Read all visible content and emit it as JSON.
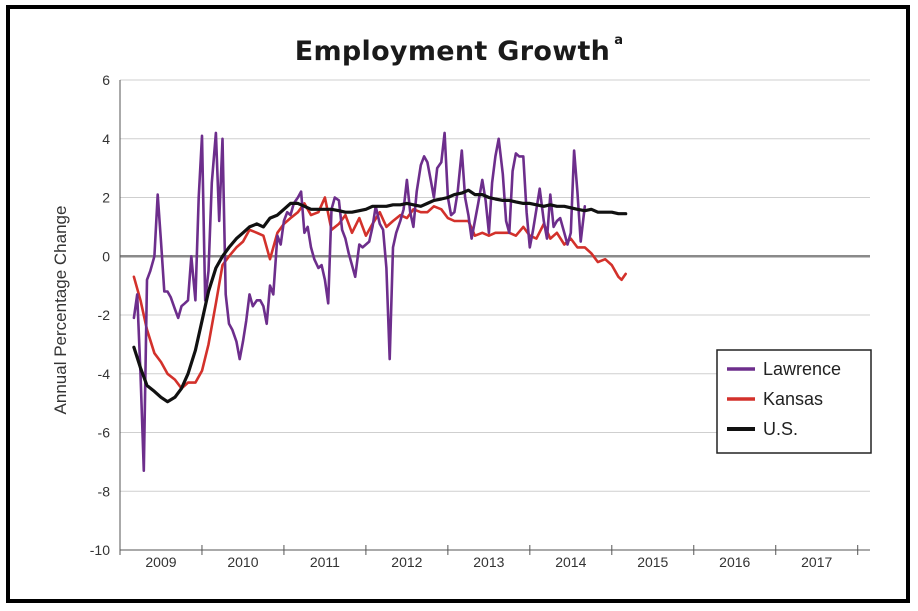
{
  "chart_data": {
    "type": "line",
    "title": "Employment Growth",
    "title_superscript": "a",
    "ylabel": "Annual Percentage Change",
    "ylim": [
      -10,
      6
    ],
    "y_ticks": [
      6,
      4,
      2,
      0,
      -2,
      -4,
      -6,
      -8,
      -10
    ],
    "x_ticks": [
      "2009",
      "2010",
      "2011",
      "2012",
      "2013",
      "2014",
      "2015",
      "2016",
      "2017"
    ],
    "xlim": [
      2008.5,
      2017.65
    ],
    "grid": true,
    "legend_position": "right",
    "series": [
      {
        "name": "Lawrence",
        "color": "#6d2e8c",
        "points": [
          [
            2008.67,
            -2.1
          ],
          [
            2008.71,
            -1.3
          ],
          [
            2008.75,
            -4.0
          ],
          [
            2008.79,
            -7.3
          ],
          [
            2008.83,
            -0.8
          ],
          [
            2008.87,
            -0.5
          ],
          [
            2008.92,
            0.0
          ],
          [
            2008.96,
            2.1
          ],
          [
            2009.0,
            0.5
          ],
          [
            2009.04,
            -1.2
          ],
          [
            2009.08,
            -1.2
          ],
          [
            2009.12,
            -1.4
          ],
          [
            2009.17,
            -1.8
          ],
          [
            2009.21,
            -2.1
          ],
          [
            2009.25,
            -1.7
          ],
          [
            2009.29,
            -1.6
          ],
          [
            2009.33,
            -1.5
          ],
          [
            2009.37,
            0.0
          ],
          [
            2009.42,
            -1.5
          ],
          [
            2009.46,
            2.0
          ],
          [
            2009.5,
            4.1
          ],
          [
            2009.54,
            -1.5
          ],
          [
            2009.58,
            -0.5
          ],
          [
            2009.62,
            2.5
          ],
          [
            2009.67,
            4.2
          ],
          [
            2009.71,
            1.2
          ],
          [
            2009.75,
            4.0
          ],
          [
            2009.79,
            -1.3
          ],
          [
            2009.83,
            -2.3
          ],
          [
            2009.87,
            -2.5
          ],
          [
            2009.92,
            -2.9
          ],
          [
            2009.96,
            -3.5
          ],
          [
            2010.0,
            -2.9
          ],
          [
            2010.04,
            -2.2
          ],
          [
            2010.08,
            -1.3
          ],
          [
            2010.12,
            -1.7
          ],
          [
            2010.17,
            -1.5
          ],
          [
            2010.21,
            -1.5
          ],
          [
            2010.25,
            -1.7
          ],
          [
            2010.29,
            -2.3
          ],
          [
            2010.33,
            -1.0
          ],
          [
            2010.37,
            -1.3
          ],
          [
            2010.42,
            0.7
          ],
          [
            2010.46,
            0.4
          ],
          [
            2010.5,
            1.2
          ],
          [
            2010.54,
            1.5
          ],
          [
            2010.58,
            1.4
          ],
          [
            2010.62,
            1.8
          ],
          [
            2010.67,
            2.0
          ],
          [
            2010.71,
            2.2
          ],
          [
            2010.75,
            0.8
          ],
          [
            2010.79,
            1.0
          ],
          [
            2010.83,
            0.3
          ],
          [
            2010.87,
            -0.1
          ],
          [
            2010.92,
            -0.4
          ],
          [
            2010.96,
            -0.3
          ],
          [
            2011.0,
            -0.8
          ],
          [
            2011.04,
            -1.6
          ],
          [
            2011.08,
            1.6
          ],
          [
            2011.12,
            2.0
          ],
          [
            2011.17,
            1.9
          ],
          [
            2011.21,
            0.9
          ],
          [
            2011.25,
            0.6
          ],
          [
            2011.29,
            0.1
          ],
          [
            2011.33,
            -0.3
          ],
          [
            2011.37,
            -0.7
          ],
          [
            2011.42,
            0.4
          ],
          [
            2011.46,
            0.3
          ],
          [
            2011.5,
            0.4
          ],
          [
            2011.54,
            0.5
          ],
          [
            2011.58,
            1.0
          ],
          [
            2011.62,
            1.7
          ],
          [
            2011.67,
            1.1
          ],
          [
            2011.71,
            0.9
          ],
          [
            2011.75,
            -0.4
          ],
          [
            2011.79,
            -3.5
          ],
          [
            2011.83,
            0.3
          ],
          [
            2011.87,
            0.8
          ],
          [
            2011.92,
            1.2
          ],
          [
            2011.96,
            1.6
          ],
          [
            2012.0,
            2.6
          ],
          [
            2012.04,
            1.5
          ],
          [
            2012.08,
            1.0
          ],
          [
            2012.12,
            2.2
          ],
          [
            2012.17,
            3.1
          ],
          [
            2012.21,
            3.4
          ],
          [
            2012.25,
            3.2
          ],
          [
            2012.29,
            2.6
          ],
          [
            2012.33,
            2.0
          ],
          [
            2012.37,
            3.0
          ],
          [
            2012.42,
            3.2
          ],
          [
            2012.46,
            4.2
          ],
          [
            2012.5,
            2.0
          ],
          [
            2012.54,
            1.4
          ],
          [
            2012.58,
            1.5
          ],
          [
            2012.62,
            2.2
          ],
          [
            2012.67,
            3.6
          ],
          [
            2012.71,
            2.0
          ],
          [
            2012.75,
            1.4
          ],
          [
            2012.79,
            0.6
          ],
          [
            2012.83,
            1.2
          ],
          [
            2012.87,
            1.8
          ],
          [
            2012.92,
            2.6
          ],
          [
            2012.96,
            1.9
          ],
          [
            2013.0,
            0.8
          ],
          [
            2013.04,
            2.5
          ],
          [
            2013.08,
            3.4
          ],
          [
            2013.12,
            4.0
          ],
          [
            2013.17,
            2.8
          ],
          [
            2013.21,
            1.2
          ],
          [
            2013.25,
            0.8
          ],
          [
            2013.29,
            2.9
          ],
          [
            2013.33,
            3.5
          ],
          [
            2013.37,
            3.4
          ],
          [
            2013.42,
            3.4
          ],
          [
            2013.46,
            1.5
          ],
          [
            2013.5,
            0.3
          ],
          [
            2013.54,
            0.9
          ],
          [
            2013.58,
            1.6
          ],
          [
            2013.62,
            2.3
          ],
          [
            2013.67,
            1.2
          ],
          [
            2013.71,
            0.6
          ],
          [
            2013.75,
            2.1
          ],
          [
            2013.79,
            1.0
          ],
          [
            2013.83,
            1.2
          ],
          [
            2013.87,
            1.3
          ],
          [
            2013.92,
            0.8
          ],
          [
            2013.96,
            0.4
          ],
          [
            2014.0,
            0.8
          ],
          [
            2014.04,
            3.6
          ],
          [
            2014.08,
            2.2
          ],
          [
            2014.12,
            0.5
          ],
          [
            2014.17,
            1.7
          ]
        ]
      },
      {
        "name": "Kansas",
        "color": "#d3312b",
        "points": [
          [
            2008.67,
            -0.7
          ],
          [
            2008.75,
            -1.5
          ],
          [
            2008.83,
            -2.5
          ],
          [
            2008.92,
            -3.3
          ],
          [
            2009.0,
            -3.6
          ],
          [
            2009.08,
            -4.0
          ],
          [
            2009.17,
            -4.2
          ],
          [
            2009.25,
            -4.5
          ],
          [
            2009.33,
            -4.3
          ],
          [
            2009.42,
            -4.3
          ],
          [
            2009.5,
            -3.9
          ],
          [
            2009.58,
            -3.0
          ],
          [
            2009.67,
            -1.6
          ],
          [
            2009.75,
            -0.3
          ],
          [
            2009.83,
            0.0
          ],
          [
            2009.92,
            0.3
          ],
          [
            2010.0,
            0.5
          ],
          [
            2010.08,
            0.9
          ],
          [
            2010.17,
            0.8
          ],
          [
            2010.25,
            0.7
          ],
          [
            2010.33,
            -0.1
          ],
          [
            2010.42,
            0.8
          ],
          [
            2010.5,
            1.1
          ],
          [
            2010.58,
            1.3
          ],
          [
            2010.67,
            1.5
          ],
          [
            2010.75,
            1.8
          ],
          [
            2010.83,
            1.4
          ],
          [
            2010.92,
            1.5
          ],
          [
            2011.0,
            2.0
          ],
          [
            2011.08,
            0.9
          ],
          [
            2011.17,
            1.1
          ],
          [
            2011.25,
            1.4
          ],
          [
            2011.33,
            0.8
          ],
          [
            2011.42,
            1.3
          ],
          [
            2011.5,
            0.7
          ],
          [
            2011.58,
            1.1
          ],
          [
            2011.67,
            1.5
          ],
          [
            2011.75,
            1.0
          ],
          [
            2011.83,
            1.2
          ],
          [
            2011.92,
            1.4
          ],
          [
            2012.0,
            1.3
          ],
          [
            2012.08,
            1.6
          ],
          [
            2012.17,
            1.5
          ],
          [
            2012.25,
            1.5
          ],
          [
            2012.33,
            1.7
          ],
          [
            2012.42,
            1.6
          ],
          [
            2012.5,
            1.3
          ],
          [
            2012.58,
            1.2
          ],
          [
            2012.67,
            1.2
          ],
          [
            2012.75,
            1.2
          ],
          [
            2012.83,
            0.7
          ],
          [
            2012.92,
            0.8
          ],
          [
            2013.0,
            0.7
          ],
          [
            2013.08,
            0.8
          ],
          [
            2013.17,
            0.8
          ],
          [
            2013.25,
            0.8
          ],
          [
            2013.33,
            0.7
          ],
          [
            2013.42,
            1.0
          ],
          [
            2013.5,
            0.7
          ],
          [
            2013.58,
            0.6
          ],
          [
            2013.67,
            1.1
          ],
          [
            2013.75,
            0.6
          ],
          [
            2013.83,
            0.8
          ],
          [
            2013.92,
            0.4
          ],
          [
            2014.0,
            0.6
          ],
          [
            2014.08,
            0.3
          ],
          [
            2014.17,
            0.3
          ],
          [
            2014.25,
            0.1
          ],
          [
            2014.33,
            -0.2
          ],
          [
            2014.42,
            -0.1
          ],
          [
            2014.5,
            -0.3
          ],
          [
            2014.58,
            -0.7
          ],
          [
            2014.62,
            -0.8
          ],
          [
            2014.67,
            -0.6
          ]
        ]
      },
      {
        "name": "U.S.",
        "color": "#111111",
        "points": [
          [
            2008.67,
            -3.1
          ],
          [
            2008.75,
            -3.8
          ],
          [
            2008.83,
            -4.4
          ],
          [
            2008.92,
            -4.6
          ],
          [
            2009.0,
            -4.8
          ],
          [
            2009.08,
            -4.95
          ],
          [
            2009.17,
            -4.8
          ],
          [
            2009.25,
            -4.5
          ],
          [
            2009.33,
            -4.0
          ],
          [
            2009.42,
            -3.2
          ],
          [
            2009.5,
            -2.2
          ],
          [
            2009.58,
            -1.2
          ],
          [
            2009.67,
            -0.4
          ],
          [
            2009.75,
            0.0
          ],
          [
            2009.83,
            0.3
          ],
          [
            2009.92,
            0.6
          ],
          [
            2010.0,
            0.8
          ],
          [
            2010.08,
            1.0
          ],
          [
            2010.17,
            1.1
          ],
          [
            2010.25,
            1.0
          ],
          [
            2010.33,
            1.3
          ],
          [
            2010.42,
            1.4
          ],
          [
            2010.5,
            1.6
          ],
          [
            2010.58,
            1.8
          ],
          [
            2010.67,
            1.8
          ],
          [
            2010.75,
            1.7
          ],
          [
            2010.83,
            1.6
          ],
          [
            2010.92,
            1.6
          ],
          [
            2011.0,
            1.6
          ],
          [
            2011.08,
            1.6
          ],
          [
            2011.17,
            1.55
          ],
          [
            2011.25,
            1.5
          ],
          [
            2011.33,
            1.5
          ],
          [
            2011.42,
            1.55
          ],
          [
            2011.5,
            1.6
          ],
          [
            2011.58,
            1.7
          ],
          [
            2011.67,
            1.7
          ],
          [
            2011.75,
            1.7
          ],
          [
            2011.83,
            1.75
          ],
          [
            2011.92,
            1.75
          ],
          [
            2012.0,
            1.8
          ],
          [
            2012.08,
            1.75
          ],
          [
            2012.17,
            1.7
          ],
          [
            2012.25,
            1.8
          ],
          [
            2012.33,
            1.9
          ],
          [
            2012.42,
            1.95
          ],
          [
            2012.5,
            2.0
          ],
          [
            2012.58,
            2.1
          ],
          [
            2012.67,
            2.15
          ],
          [
            2012.75,
            2.25
          ],
          [
            2012.83,
            2.1
          ],
          [
            2012.92,
            2.1
          ],
          [
            2013.0,
            2.0
          ],
          [
            2013.08,
            1.95
          ],
          [
            2013.17,
            1.9
          ],
          [
            2013.25,
            1.9
          ],
          [
            2013.33,
            1.85
          ],
          [
            2013.42,
            1.8
          ],
          [
            2013.5,
            1.8
          ],
          [
            2013.58,
            1.75
          ],
          [
            2013.67,
            1.7
          ],
          [
            2013.75,
            1.75
          ],
          [
            2013.83,
            1.7
          ],
          [
            2013.92,
            1.7
          ],
          [
            2014.0,
            1.65
          ],
          [
            2014.08,
            1.6
          ],
          [
            2014.17,
            1.55
          ],
          [
            2014.25,
            1.6
          ],
          [
            2014.33,
            1.5
          ],
          [
            2014.42,
            1.5
          ],
          [
            2014.5,
            1.5
          ],
          [
            2014.58,
            1.45
          ],
          [
            2014.67,
            1.45
          ]
        ]
      }
    ]
  }
}
